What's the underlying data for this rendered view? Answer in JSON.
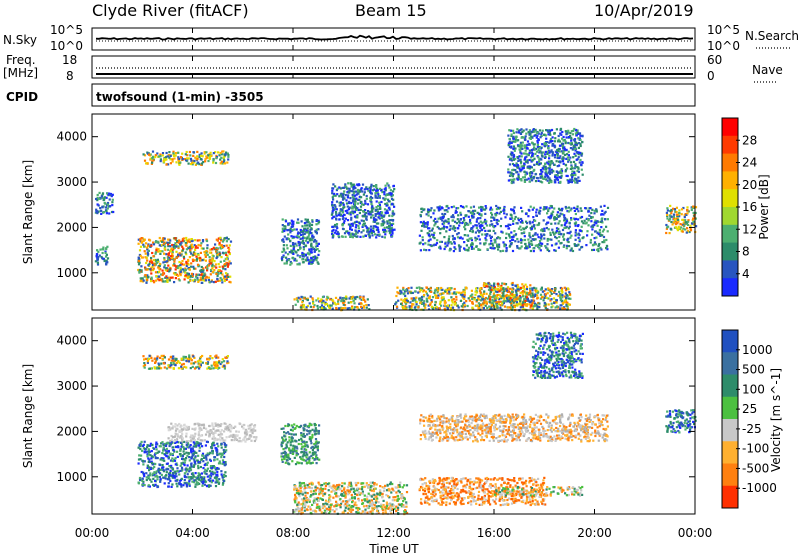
{
  "header": {
    "title": "Clyde River (fitACF)",
    "beam": "Beam 15",
    "date": "10/Apr/2019"
  },
  "nsky_panel": {
    "label": "N.Sky",
    "left_ticks": [
      "10^5",
      "10^0"
    ],
    "right_ticks": [
      "10^5",
      "10^0"
    ],
    "right_label": "N.Search"
  },
  "freq_panel": {
    "label_line1": "Freq.",
    "label_line2": "[MHz]",
    "left_ticks": [
      "18",
      "8"
    ],
    "right_ticks": [
      "60",
      "0"
    ],
    "right_label": "Nave"
  },
  "cpid": {
    "label": "CPID",
    "text": "twofsound (1-min) -3505"
  },
  "axes": {
    "ylabel": "Slant Range [km]",
    "xlabel": "Time UT",
    "x_ticks": [
      "00:00",
      "04:00",
      "08:00",
      "12:00",
      "16:00",
      "20:00",
      "00:00"
    ],
    "y_ticks": [
      "4000",
      "3000",
      "2000",
      "1000"
    ]
  },
  "power_colorbar": {
    "label": "Power [dB]",
    "ticks": [
      "28",
      "24",
      "20",
      "16",
      "12",
      "8",
      "4"
    ],
    "colors": [
      "#ff0000",
      "#ff3a00",
      "#ff7a00",
      "#ffb000",
      "#e0e000",
      "#a0d830",
      "#4caf70",
      "#2c8c6a",
      "#2855c0",
      "#1a2aff"
    ]
  },
  "velocity_colorbar": {
    "label": "Velocity [m s^-1]",
    "ticks": [
      "1000",
      "500",
      "100",
      "25",
      "-25",
      "-100",
      "-500",
      "-1000"
    ],
    "colors": [
      "#2050c0",
      "#3a70a0",
      "#2e8c6a",
      "#4cc040",
      "#c8c8c8",
      "#ffb030",
      "#ff8010",
      "#ff3000"
    ]
  },
  "chart_data": {
    "type": "heatmap",
    "x_range_hours": [
      0,
      24
    ],
    "y_range_km": [
      180,
      4500
    ],
    "power_regions": [
      {
        "t": [
          1.8,
          5.5
        ],
        "r": [
          800,
          1800
        ],
        "color": "mix_hot"
      },
      {
        "t": [
          2.0,
          5.4
        ],
        "r": [
          3400,
          3700
        ],
        "color": "mix_warm"
      },
      {
        "t": [
          0.1,
          0.6
        ],
        "r": [
          1200,
          1600
        ],
        "color": "blue"
      },
      {
        "t": [
          0.1,
          0.8
        ],
        "r": [
          2300,
          2800
        ],
        "color": "blue"
      },
      {
        "t": [
          7.5,
          9.0
        ],
        "r": [
          1200,
          2200
        ],
        "color": "blue"
      },
      {
        "t": [
          8.0,
          11.0
        ],
        "r": [
          200,
          500
        ],
        "color": "mix_warm"
      },
      {
        "t": [
          9.5,
          12.0
        ],
        "r": [
          1800,
          3000
        ],
        "color": "blue"
      },
      {
        "t": [
          12.0,
          19.0
        ],
        "r": [
          200,
          700
        ],
        "color": "mix_warm"
      },
      {
        "t": [
          15.5,
          17.5
        ],
        "r": [
          300,
          800
        ],
        "color": "mix_hot"
      },
      {
        "t": [
          13.0,
          20.5
        ],
        "r": [
          1500,
          2500
        ],
        "color": "blue"
      },
      {
        "t": [
          16.5,
          19.5
        ],
        "r": [
          3000,
          4200
        ],
        "color": "blue"
      },
      {
        "t": [
          22.8,
          24.0
        ],
        "r": [
          1900,
          2500
        ],
        "color": "mix_warm"
      }
    ],
    "velocity_regions": [
      {
        "t": [
          1.8,
          5.3
        ],
        "r": [
          800,
          1800
        ],
        "color": "blue"
      },
      {
        "t": [
          2.0,
          5.4
        ],
        "r": [
          3400,
          3700
        ],
        "color": "mix_warm"
      },
      {
        "t": [
          3.0,
          6.5
        ],
        "r": [
          1800,
          2200
        ],
        "color": "grey"
      },
      {
        "t": [
          7.5,
          9.0
        ],
        "r": [
          1300,
          2200
        ],
        "color": "green"
      },
      {
        "t": [
          8.0,
          12.5
        ],
        "r": [
          200,
          900
        ],
        "color": "mix_green_orange"
      },
      {
        "t": [
          13.0,
          18.0
        ],
        "r": [
          400,
          1000
        ],
        "color": "orange"
      },
      {
        "t": [
          16.0,
          19.5
        ],
        "r": [
          600,
          800
        ],
        "color": "mix_green_orange"
      },
      {
        "t": [
          13.0,
          20.5
        ],
        "r": [
          1800,
          2400
        ],
        "color": "mix_orange_grey"
      },
      {
        "t": [
          17.5,
          19.5
        ],
        "r": [
          3200,
          4200
        ],
        "color": "blue"
      },
      {
        "t": [
          22.8,
          24.0
        ],
        "r": [
          2000,
          2500
        ],
        "color": "blue"
      }
    ]
  }
}
